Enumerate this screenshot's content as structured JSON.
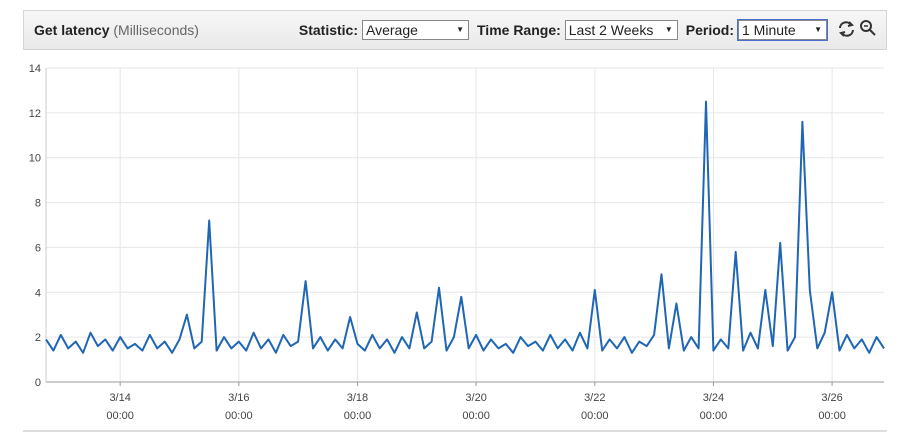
{
  "header": {
    "title": "Get latency",
    "unit": "(Milliseconds)",
    "controls": [
      {
        "label": "Statistic:",
        "value": "Average"
      },
      {
        "label": "Time Range:",
        "value": "Last 2 Weeks"
      },
      {
        "label": "Period:",
        "value": "1 Minute"
      }
    ]
  },
  "chart_data": {
    "type": "line",
    "color": "#1f66b5",
    "grid": true,
    "xlim": [
      "3/12 18:00",
      "3/26 21:00"
    ],
    "xticks": [
      {
        "value": "3/14 00:00",
        "label": [
          "3/14",
          "00:00"
        ]
      },
      {
        "value": "3/16 00:00",
        "label": [
          "3/16",
          "00:00"
        ]
      },
      {
        "value": "3/18 00:00",
        "label": [
          "3/18",
          "00:00"
        ]
      },
      {
        "value": "3/20 00:00",
        "label": [
          "3/20",
          "00:00"
        ]
      },
      {
        "value": "3/22 00:00",
        "label": [
          "3/22",
          "00:00"
        ]
      },
      {
        "value": "3/24 00:00",
        "label": [
          "3/24",
          "00:00"
        ]
      },
      {
        "value": "3/26 00:00",
        "label": [
          "3/26",
          "00:00"
        ]
      }
    ],
    "ylim": [
      0,
      14
    ],
    "yticks": [
      0,
      2,
      4,
      6,
      8,
      10,
      12,
      14
    ],
    "x": [
      "3/12 18:00",
      "3/12 21:00",
      "3/13 00:00",
      "3/13 03:00",
      "3/13 06:00",
      "3/13 09:00",
      "3/13 12:00",
      "3/13 15:00",
      "3/13 18:00",
      "3/13 21:00",
      "3/14 00:00",
      "3/14 03:00",
      "3/14 06:00",
      "3/14 09:00",
      "3/14 12:00",
      "3/14 15:00",
      "3/14 18:00",
      "3/14 21:00",
      "3/15 00:00",
      "3/15 03:00",
      "3/15 06:00",
      "3/15 09:00",
      "3/15 12:00",
      "3/15 15:00",
      "3/15 18:00",
      "3/15 21:00",
      "3/16 00:00",
      "3/16 03:00",
      "3/16 06:00",
      "3/16 09:00",
      "3/16 12:00",
      "3/16 15:00",
      "3/16 18:00",
      "3/16 21:00",
      "3/17 00:00",
      "3/17 03:00",
      "3/17 06:00",
      "3/17 09:00",
      "3/17 12:00",
      "3/17 15:00",
      "3/17 18:00",
      "3/17 21:00",
      "3/18 00:00",
      "3/18 03:00",
      "3/18 06:00",
      "3/18 09:00",
      "3/18 12:00",
      "3/18 15:00",
      "3/18 18:00",
      "3/18 21:00",
      "3/19 00:00",
      "3/19 03:00",
      "3/19 06:00",
      "3/19 09:00",
      "3/19 12:00",
      "3/19 15:00",
      "3/19 18:00",
      "3/19 21:00",
      "3/20 00:00",
      "3/20 03:00",
      "3/20 06:00",
      "3/20 09:00",
      "3/20 12:00",
      "3/20 15:00",
      "3/20 18:00",
      "3/20 21:00",
      "3/21 00:00",
      "3/21 03:00",
      "3/21 06:00",
      "3/21 09:00",
      "3/21 12:00",
      "3/21 15:00",
      "3/21 18:00",
      "3/21 21:00",
      "3/22 00:00",
      "3/22 03:00",
      "3/22 06:00",
      "3/22 09:00",
      "3/22 12:00",
      "3/22 15:00",
      "3/22 18:00",
      "3/22 21:00",
      "3/23 00:00",
      "3/23 03:00",
      "3/23 06:00",
      "3/23 09:00",
      "3/23 12:00",
      "3/23 15:00",
      "3/23 18:00",
      "3/23 21:00",
      "3/24 00:00",
      "3/24 03:00",
      "3/24 06:00",
      "3/24 09:00",
      "3/24 12:00",
      "3/24 15:00",
      "3/24 18:00",
      "3/24 21:00",
      "3/25 00:00",
      "3/25 03:00",
      "3/25 06:00",
      "3/25 09:00",
      "3/25 12:00",
      "3/25 15:00",
      "3/25 18:00",
      "3/25 21:00",
      "3/26 00:00",
      "3/26 03:00",
      "3/26 06:00",
      "3/26 09:00",
      "3/26 12:00",
      "3/26 15:00",
      "3/26 18:00",
      "3/26 21:00"
    ],
    "values": [
      1.9,
      1.4,
      2.1,
      1.5,
      1.8,
      1.3,
      2.2,
      1.6,
      1.9,
      1.4,
      2.0,
      1.5,
      1.7,
      1.4,
      2.1,
      1.5,
      1.8,
      1.3,
      1.9,
      3.0,
      1.5,
      1.8,
      7.2,
      1.4,
      2.0,
      1.5,
      1.8,
      1.4,
      2.2,
      1.5,
      1.9,
      1.3,
      2.1,
      1.6,
      1.8,
      4.5,
      1.5,
      2.0,
      1.4,
      1.9,
      1.5,
      2.9,
      1.7,
      1.4,
      2.1,
      1.5,
      1.9,
      1.3,
      2.0,
      1.5,
      3.1,
      1.5,
      1.8,
      4.2,
      1.4,
      2.0,
      3.8,
      1.5,
      2.1,
      1.4,
      1.9,
      1.5,
      1.7,
      1.3,
      2.0,
      1.6,
      1.8,
      1.4,
      2.1,
      1.5,
      1.9,
      1.4,
      2.2,
      1.5,
      4.1,
      1.4,
      1.9,
      1.5,
      2.0,
      1.3,
      1.8,
      1.6,
      2.1,
      4.8,
      1.5,
      3.5,
      1.4,
      2.0,
      1.5,
      12.5,
      1.4,
      1.9,
      1.5,
      5.8,
      1.4,
      2.2,
      1.5,
      4.1,
      1.6,
      6.2,
      1.4,
      2.0,
      11.6,
      4.1,
      1.5,
      2.2,
      4.0,
      1.4,
      2.1,
      1.5,
      1.9,
      1.3,
      2.0,
      1.5
    ]
  }
}
